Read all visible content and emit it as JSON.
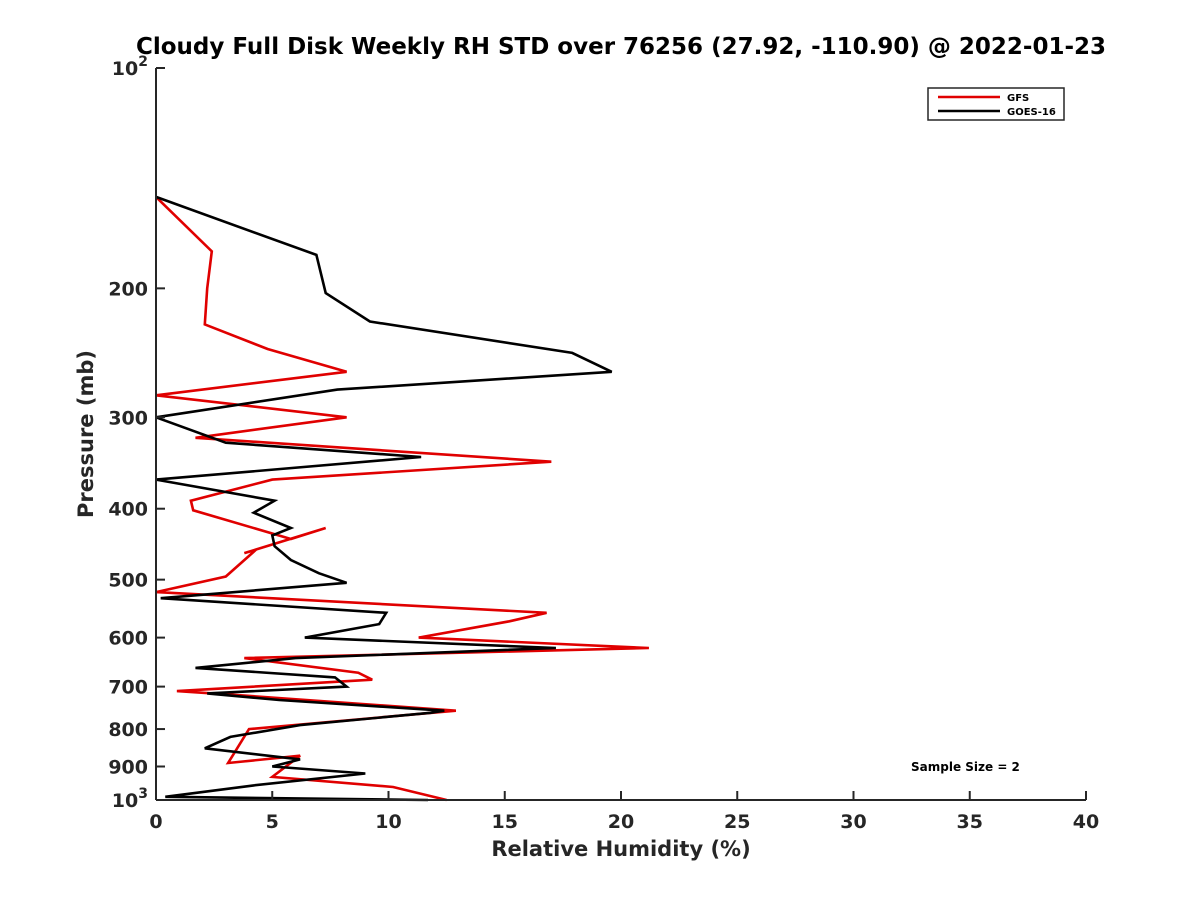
{
  "chart_data": {
    "type": "line",
    "title": "Cloudy Full Disk Weekly RH STD over 76256 (27.92, -110.90) @ 2022-01-23",
    "xlabel": "Relative Humidity (%)",
    "ylabel": "Pressure (mb)",
    "xlim": [
      0,
      40
    ],
    "ylim": [
      100,
      1000
    ],
    "yscale": "log",
    "yreversed": true,
    "xticks": [
      0,
      5,
      10,
      15,
      20,
      25,
      30,
      35,
      40
    ],
    "xtick_labels": [
      "0",
      "5",
      "10",
      "15",
      "20",
      "25",
      "30",
      "35",
      "40"
    ],
    "yticks": [
      {
        "value": 100,
        "base": "10",
        "exp": "2"
      },
      {
        "value": 200,
        "label": "200"
      },
      {
        "value": 300,
        "label": "300"
      },
      {
        "value": 400,
        "label": "400"
      },
      {
        "value": 500,
        "label": "500"
      },
      {
        "value": 600,
        "label": "600"
      },
      {
        "value": 700,
        "label": "700"
      },
      {
        "value": 800,
        "label": "800"
      },
      {
        "value": 900,
        "label": "900"
      },
      {
        "value": 1000,
        "base": "10",
        "exp": "3"
      }
    ],
    "legend_position": "top-right",
    "annotation": "Sample Size = 2",
    "series": [
      {
        "name": "GFS",
        "color": "#e00000",
        "x": [
          0.0,
          2.4,
          2.2,
          2.1,
          4.8,
          8.2,
          0.0,
          8.2,
          1.7,
          17.0,
          5.0,
          1.5,
          1.6,
          5.8,
          7.3,
          3.8,
          4.3,
          3.0,
          0.0,
          16.8,
          15.2,
          11.3,
          21.2,
          3.8,
          8.7,
          9.3,
          0.9,
          3.8,
          12.9,
          4.0,
          3.1,
          6.2,
          5.0,
          10.2,
          12.5
        ],
        "y": [
          150,
          178,
          200,
          224,
          242,
          260,
          280,
          300,
          320,
          345,
          365,
          390,
          402,
          440,
          425,
          460,
          455,
          495,
          520,
          555,
          570,
          600,
          620,
          640,
          670,
          685,
          710,
          720,
          755,
          800,
          890,
          870,
          930,
          960,
          1000
        ]
      },
      {
        "name": "GOES-16",
        "color": "#000000",
        "x": [
          0.0,
          6.9,
          7.3,
          9.2,
          17.9,
          19.6,
          7.8,
          0.0,
          3.0,
          11.4,
          0.0,
          5.1,
          4.2,
          5.8,
          5.0,
          5.1,
          5.8,
          7.0,
          8.2,
          0.2,
          9.9,
          9.6,
          6.4,
          17.2,
          6.0,
          1.7,
          7.7,
          8.2,
          2.2,
          5.3,
          12.4,
          11.8,
          6.2,
          3.2,
          2.1,
          6.2,
          5.0,
          9.0,
          4.2,
          0.4,
          11.7
        ],
        "y": [
          150,
          180,
          203,
          222,
          245,
          260,
          275,
          300,
          325,
          340,
          365,
          390,
          405,
          425,
          435,
          450,
          470,
          490,
          505,
          530,
          555,
          575,
          600,
          620,
          640,
          660,
          680,
          700,
          715,
          730,
          755,
          760,
          790,
          820,
          850,
          880,
          900,
          920,
          955,
          990,
          1000
        ]
      }
    ]
  }
}
